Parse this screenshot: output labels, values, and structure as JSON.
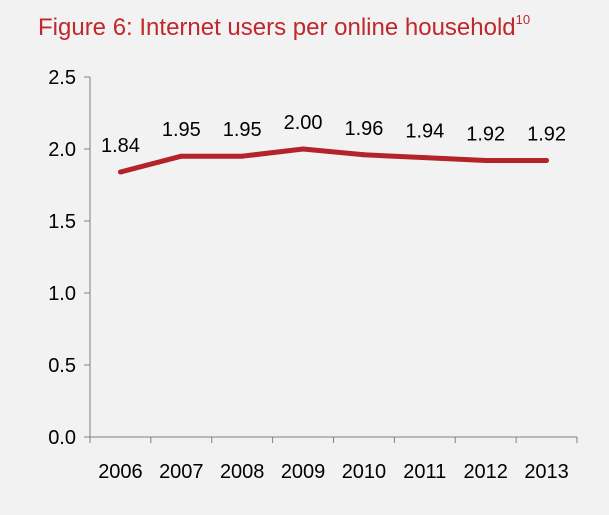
{
  "colors": {
    "title": "#c0282d",
    "line": "#b5232a",
    "axis": "#808080",
    "text": "#000000",
    "panel": "#f2f2f2"
  },
  "chart_data": {
    "type": "line",
    "title": "Figure 6: Internet users per online household",
    "title_footnote": "10",
    "xlabel": "",
    "ylabel": "",
    "categories": [
      "2006",
      "2007",
      "2008",
      "2009",
      "2010",
      "2011",
      "2012",
      "2013"
    ],
    "series": [
      {
        "values": [
          1.84,
          1.95,
          1.95,
          2.0,
          1.96,
          1.94,
          1.92,
          1.92
        ],
        "data_labels": [
          "1.84",
          "1.95",
          "1.95",
          "2.00",
          "1.96",
          "1.94",
          "1.92",
          "1.92"
        ]
      }
    ],
    "ylim": [
      0,
      2.5
    ],
    "yticks": [
      "0.0",
      "0.5",
      "1.0",
      "1.5",
      "2.0",
      "2.5"
    ],
    "ytick_values": [
      0,
      0.5,
      1.0,
      1.5,
      2.0,
      2.5
    ],
    "grid": false,
    "legend": "none"
  }
}
